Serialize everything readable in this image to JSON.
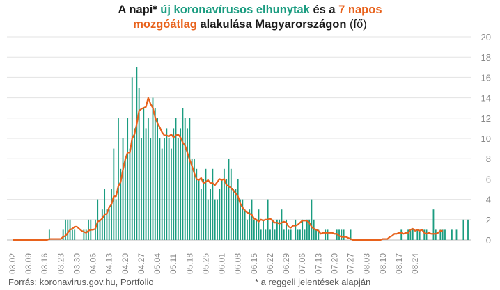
{
  "title": {
    "line1": [
      {
        "text": "A napi* ",
        "color": "dark",
        "bold": true
      },
      {
        "text": "új koronavírusos elhunytak",
        "color": "green",
        "bold": true
      },
      {
        "text": " és a ",
        "color": "dark",
        "bold": true
      },
      {
        "text": "7 napos",
        "color": "orange",
        "bold": true
      }
    ],
    "line2": [
      {
        "text": "mozgóátlag",
        "color": "orange",
        "bold": true
      },
      {
        "text": " alakulása Magyarországon ",
        "color": "dark",
        "bold": true
      },
      {
        "text": "(fő)",
        "color": "dark",
        "bold": false
      }
    ]
  },
  "source": "Forrás: koronavirus.gov.hu, Portfolio",
  "note": "* a reggeli jelentések alapján",
  "colors": {
    "bars": "#1a9c80",
    "line": "#e8621c",
    "grid": "#e3e3e3",
    "tick_text": "#888888"
  },
  "chart_data": {
    "type": "bar",
    "xlabel": "",
    "ylabel": "",
    "ylim": [
      0,
      20
    ],
    "yticks": [
      0,
      2,
      4,
      6,
      8,
      10,
      12,
      14,
      16,
      18,
      20
    ],
    "y_axis_position": "right",
    "grid": true,
    "x_tick_labels": [
      "03.02",
      "03.09",
      "03.16",
      "03.23",
      "03.30",
      "04.06",
      "04.13",
      "04.20",
      "04.27",
      "05.04",
      "05.11",
      "05.18",
      "05.25",
      "06.01",
      "06.08",
      "06.15",
      "06.22",
      "06.29",
      "07.06",
      "07.13",
      "07.20",
      "07.27",
      "08.03",
      "08.10",
      "08.17",
      "08.24"
    ],
    "start_date": "03.02",
    "end_date": "08.24",
    "series": [
      {
        "name": "új koronavírusos elhunytak",
        "kind": "bar",
        "values": [
          0,
          0,
          0,
          0,
          0,
          0,
          0,
          0,
          0,
          0,
          0,
          0,
          0,
          0,
          0,
          0,
          1,
          0,
          0,
          0,
          0,
          0,
          1,
          2,
          2,
          2,
          1,
          1,
          0,
          0,
          0,
          1,
          1,
          2,
          2,
          0,
          2,
          4,
          2,
          3,
          5,
          3,
          3,
          5,
          9,
          4,
          12,
          7,
          10,
          8,
          12,
          9,
          16,
          11,
          17,
          15,
          10,
          13,
          11,
          12,
          10,
          14,
          13,
          12,
          10,
          9,
          10,
          11,
          10,
          9,
          11,
          12,
          10,
          11,
          13,
          12,
          11,
          12,
          8,
          8,
          7,
          6,
          5,
          6,
          7,
          4,
          5,
          7,
          4,
          4,
          5,
          6,
          7,
          6,
          8,
          7,
          5,
          5,
          6,
          4,
          4,
          3,
          2,
          3,
          4,
          2,
          2,
          3,
          1,
          2,
          1,
          4,
          1,
          2,
          1,
          2,
          2,
          3,
          1,
          2,
          1,
          1,
          0,
          2,
          1,
          1,
          2,
          1,
          2,
          2,
          4,
          2,
          1,
          1,
          0,
          0,
          1,
          1,
          0,
          0,
          0,
          1,
          1,
          1,
          1,
          0,
          0,
          1,
          0,
          0,
          0,
          0,
          0,
          0,
          0,
          0,
          0,
          0,
          0,
          0,
          0,
          0,
          0,
          0,
          0,
          0,
          0,
          0,
          0,
          1,
          0,
          0,
          1,
          1,
          1,
          0,
          1,
          1,
          0,
          1,
          1,
          0,
          0,
          3,
          1,
          0,
          1,
          1,
          1,
          0,
          0,
          1,
          0,
          1,
          0,
          0,
          2,
          0,
          2
        ]
      },
      {
        "name": "7 napos mozgóátlag",
        "kind": "line",
        "values": [
          0,
          0,
          0,
          0,
          0,
          0,
          0,
          0,
          0,
          0,
          0,
          0,
          0,
          0,
          0,
          0,
          0.1,
          0.1,
          0.1,
          0.1,
          0.1,
          0.1,
          0.3,
          0.4,
          0.7,
          1,
          1.1,
          1.3,
          1.3,
          1.1,
          0.9,
          0.8,
          0.7,
          0.9,
          1,
          1,
          1.1,
          1.8,
          1.9,
          2.1,
          2.5,
          2.6,
          3.2,
          3.5,
          4.3,
          4.3,
          5.3,
          5.7,
          6.9,
          7.9,
          8.6,
          8.6,
          10,
          10.4,
          11.4,
          12.7,
          12.9,
          13,
          13.1,
          14,
          13.4,
          13,
          12.1,
          11.5,
          11.1,
          10.6,
          10.3,
          10.3,
          10.2,
          10.4,
          10.1,
          10.3,
          10.4,
          10.1,
          9.6,
          9.3,
          8.6,
          7.9,
          7.3,
          6.6,
          6,
          5.9,
          6.1,
          5.6,
          5.7,
          5.9,
          5.6,
          5.6,
          5.4,
          5.7,
          6,
          5.9,
          6,
          5.4,
          5.3,
          5.1,
          4.9,
          4.6,
          4.3,
          3.6,
          3.2,
          2.9,
          2.7,
          2.6,
          2.5,
          2.1,
          2,
          1.8,
          2,
          1.9,
          2,
          2,
          2.1,
          1.9,
          1.7,
          1.7,
          1.6,
          1.7,
          1.8,
          1.7,
          1.3,
          1.2,
          1.4,
          1.4,
          1.5,
          1.7,
          1.9,
          1.9,
          1.9,
          1.7,
          1.3,
          1.1,
          1,
          0.9,
          0.6,
          0.7,
          0.7,
          0.7,
          0.7,
          0.7,
          0.6,
          0.6,
          0.4,
          0.3,
          0.3,
          0.3,
          0.2,
          0.1,
          0,
          0,
          0,
          0,
          0,
          0,
          0,
          0,
          0,
          0,
          0,
          0,
          0,
          0.1,
          0.1,
          0.1,
          0.3,
          0.4,
          0.6,
          0.6,
          0.7,
          0.7,
          0.6,
          0.7,
          0.7,
          1,
          1.1,
          0.9,
          1,
          0.9,
          1,
          0.7,
          0.6,
          0.7,
          0.6,
          0.6,
          0.6,
          0.7,
          0.9,
          0.9
        ]
      }
    ]
  }
}
